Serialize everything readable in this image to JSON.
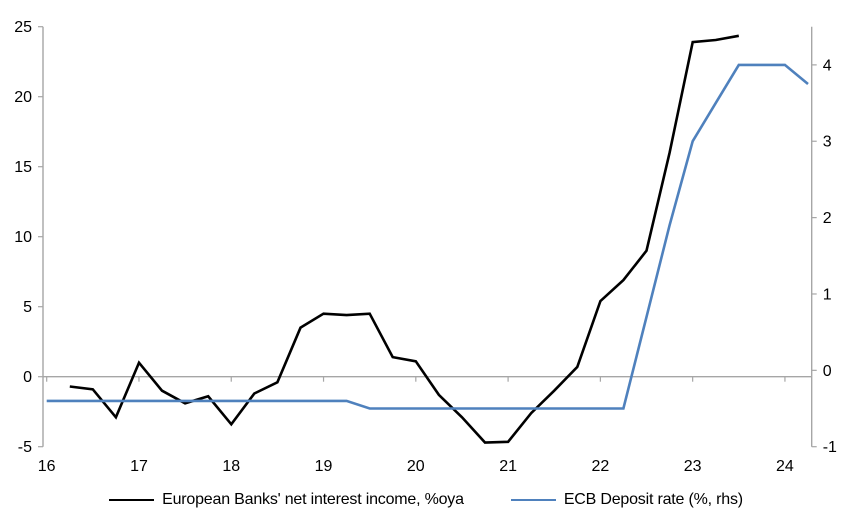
{
  "chart_data": {
    "type": "line",
    "title": "",
    "legend_position": "bottom",
    "grid": "zero-line-only",
    "background": "#ffffff",
    "axis_color": "#a6a6a6",
    "text_color": "#000000",
    "series": [
      {
        "name": "European Banks' net interest income, %oya",
        "axis": "left",
        "color": "#000000",
        "x": [
          16.25,
          16.5,
          16.75,
          17.0,
          17.25,
          17.5,
          17.75,
          18.0,
          18.25,
          18.5,
          18.75,
          19.0,
          19.25,
          19.5,
          19.75,
          20.0,
          20.25,
          20.5,
          20.75,
          21.0,
          21.25,
          21.5,
          21.75,
          22.0,
          22.25,
          22.5,
          22.75,
          23.0,
          23.25,
          23.5
        ],
        "values": [
          -0.7,
          -0.9,
          -2.9,
          1.0,
          -1.0,
          -1.9,
          -1.4,
          -3.4,
          -1.2,
          -0.4,
          3.5,
          4.5,
          4.4,
          4.5,
          1.4,
          1.1,
          -1.3,
          -2.9,
          -4.7,
          -4.65,
          -2.6,
          -1.0,
          0.7,
          5.4,
          6.9,
          9.0,
          16.0,
          23.9,
          24.05,
          24.35
        ]
      },
      {
        "name": "ECB Deposit rate (%, rhs)",
        "axis": "right",
        "color": "#4f81bd",
        "x": [
          16.0,
          16.25,
          16.5,
          16.75,
          17.0,
          17.25,
          17.5,
          17.75,
          18.0,
          18.25,
          18.5,
          18.75,
          19.0,
          19.25,
          19.5,
          19.75,
          20.0,
          20.25,
          20.5,
          20.75,
          21.0,
          21.25,
          21.5,
          21.75,
          22.0,
          22.25,
          22.5,
          22.75,
          23.0,
          23.25,
          23.5,
          23.75,
          24.0,
          24.25
        ],
        "values": [
          -0.4,
          -0.4,
          -0.4,
          -0.4,
          -0.4,
          -0.4,
          -0.4,
          -0.4,
          -0.4,
          -0.4,
          -0.4,
          -0.4,
          -0.4,
          -0.4,
          -0.5,
          -0.5,
          -0.5,
          -0.5,
          -0.5,
          -0.5,
          -0.5,
          -0.5,
          -0.5,
          -0.5,
          -0.5,
          -0.5,
          0.7,
          1.9,
          3.0,
          3.5,
          4.0,
          4.0,
          4.0,
          3.75
        ]
      }
    ],
    "left_axis": {
      "min": -5,
      "max": 25,
      "ticks": [
        -5,
        0,
        5,
        10,
        15,
        20,
        25
      ]
    },
    "right_axis": {
      "min": -1,
      "max": 4.5,
      "ticks": [
        -1,
        0,
        1,
        2,
        3,
        4
      ]
    },
    "x_axis": {
      "min": 15.96,
      "max": 24.29,
      "ticks": [
        16,
        17,
        18,
        19,
        20,
        21,
        22,
        23,
        24
      ]
    }
  }
}
